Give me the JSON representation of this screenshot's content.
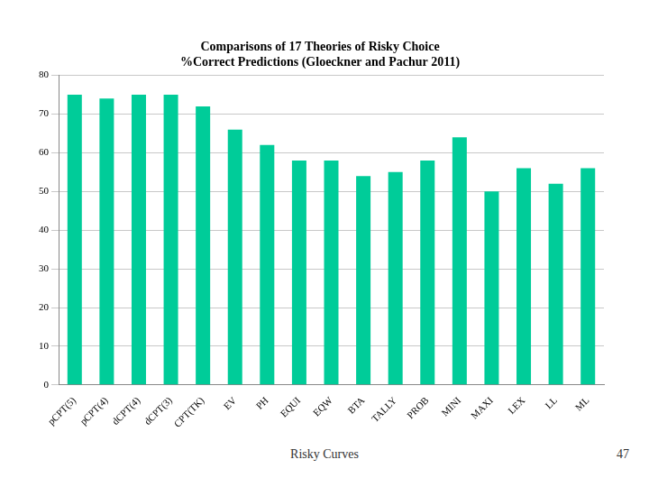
{
  "chart_data": {
    "type": "bar",
    "title": "Comparisons of 17 Theories of Risky Choice\n%Correct Predictions (Gloeckner and Pachur 2011)",
    "categories": [
      "pCPT(5)",
      "pCPT(4)",
      "dCPT(4)",
      "dCPT(3)",
      "CPT(TK)",
      "EV",
      "PH",
      "EQUI",
      "EQW",
      "BTA",
      "TALLY",
      "PROB",
      "MINI",
      "MAXI",
      "LEX",
      "LL",
      "ML"
    ],
    "values": [
      75,
      74,
      75,
      75,
      72,
      66,
      62,
      58,
      58,
      54,
      55,
      58,
      64,
      50,
      56,
      52,
      56
    ],
    "color": "#00cc99",
    "ylim": [
      0,
      80
    ],
    "yticks": [
      0,
      10,
      20,
      30,
      40,
      50,
      60,
      70,
      80
    ],
    "grid": true
  },
  "footer": {
    "text": "Risky Curves",
    "page": 47
  }
}
